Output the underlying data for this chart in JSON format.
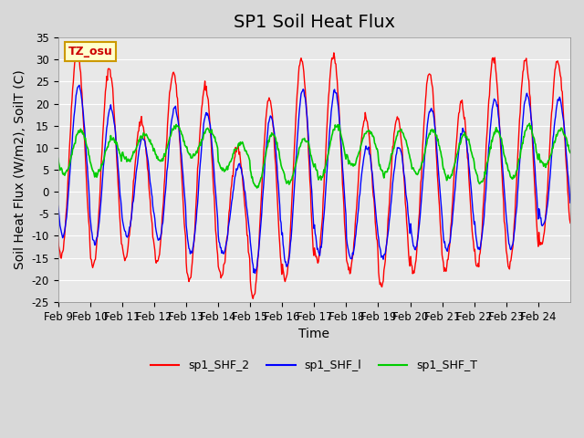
{
  "title": "SP1 Soil Heat Flux",
  "xlabel": "Time",
  "ylabel": "Soil Heat Flux (W/m2), SoilT (C)",
  "ylim": [
    -25,
    35
  ],
  "tick_labels": [
    "Feb 9",
    "Feb 10",
    "Feb 11",
    "Feb 12",
    "Feb 13",
    "Feb 14",
    "Feb 15",
    "Feb 16",
    "Feb 17",
    "Feb 18",
    "Feb 19",
    "Feb 20",
    "Feb 21",
    "Feb 22",
    "Feb 23",
    "Feb 24"
  ],
  "legend_labels": [
    "sp1_SHF_2",
    "sp1_SHF_l",
    "sp1_SHF_T"
  ],
  "legend_colors": [
    "#ff0000",
    "#0000ff",
    "#00cc00"
  ],
  "tz_label": "TZ_osu",
  "tz_bg": "#ffffcc",
  "tz_border": "#cc9900",
  "bg_color": "#e8e8e8",
  "grid_color": "#ffffff",
  "title_fontsize": 14,
  "axis_fontsize": 10,
  "tick_fontsize": 8.5,
  "days": 16,
  "pts_per_day": 48,
  "shf2_amp": [
    32,
    28,
    16,
    27,
    24,
    10,
    21,
    30,
    31,
    17,
    17,
    27,
    20,
    30,
    30,
    30
  ],
  "shf2_trough": [
    -15,
    -17,
    -15,
    -16,
    -20,
    -19,
    -24,
    -20,
    -16,
    -18,
    -21,
    -18,
    -18,
    -17,
    -17,
    -12
  ],
  "shf2_phase": 0.35,
  "shf1_amp": [
    24,
    19,
    12,
    19,
    18,
    6,
    17,
    23,
    23,
    10,
    10,
    19,
    14,
    21,
    22,
    21
  ],
  "shf1_trough": [
    -10,
    -12,
    -10,
    -11,
    -14,
    -14,
    -18,
    -17,
    -14,
    -15,
    -15,
    -13,
    -13,
    -13,
    -13,
    -8
  ],
  "shf1_phase": 0.4,
  "shfT_base": [
    9,
    8,
    10,
    11,
    11,
    8,
    7,
    7,
    9,
    10,
    9,
    9,
    8,
    8,
    9,
    10
  ],
  "shfT_amp": [
    5,
    4,
    3,
    4,
    3,
    3,
    6,
    5,
    6,
    4,
    5,
    5,
    5,
    6,
    6,
    4
  ],
  "shfT_phase": 0.45,
  "yticks": [
    -25,
    -20,
    -15,
    -10,
    -5,
    0,
    5,
    10,
    15,
    20,
    25,
    30,
    35
  ]
}
